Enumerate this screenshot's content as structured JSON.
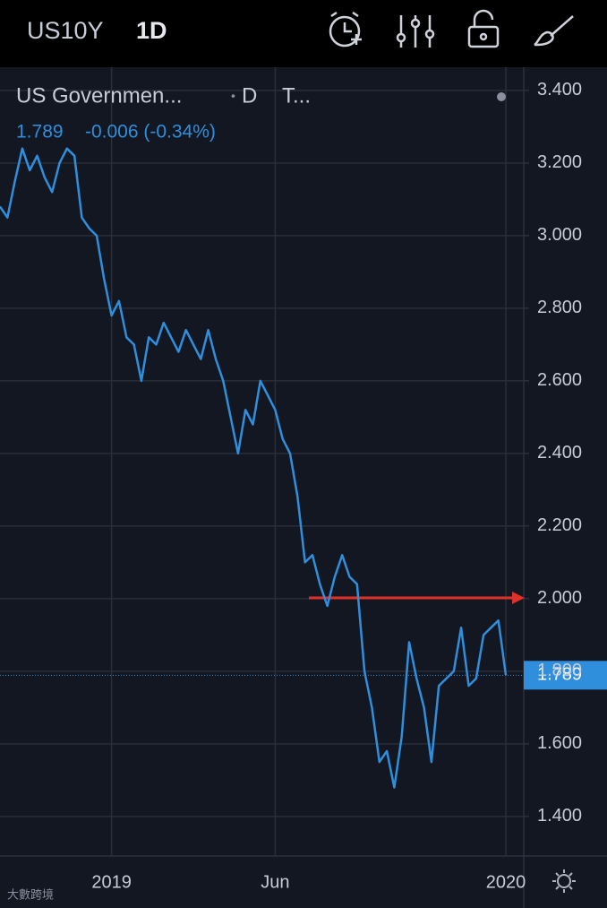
{
  "header": {
    "symbol": "US10Y",
    "interval": "1D"
  },
  "chart_data": {
    "type": "line",
    "legend": {
      "name": "US Governmen...",
      "resolution": "D",
      "source": "T...",
      "change": "-0.006 (-0.34%)"
    },
    "categories": [
      null,
      null,
      null,
      null,
      null,
      null,
      null,
      null,
      null,
      null,
      null,
      null,
      null,
      null,
      null,
      "2019",
      null,
      null,
      null,
      null,
      null,
      null,
      null,
      null,
      null,
      null,
      null,
      null,
      null,
      null,
      null,
      null,
      null,
      null,
      null,
      null,
      null,
      "Jun",
      null,
      null,
      null,
      null,
      null,
      null,
      null,
      null,
      null,
      null,
      null,
      null,
      null,
      null,
      null,
      null,
      null,
      null,
      null,
      null,
      null,
      null,
      null,
      null,
      null,
      null,
      null,
      null,
      null,
      null,
      "2020"
    ],
    "series": [
      {
        "name": "US10Y",
        "color": "#2f8fdc",
        "values": [
          3.08,
          3.05,
          3.15,
          3.24,
          3.18,
          3.22,
          3.16,
          3.12,
          3.2,
          3.24,
          3.22,
          3.05,
          3.02,
          3.0,
          2.88,
          2.78,
          2.82,
          2.72,
          2.7,
          2.6,
          2.72,
          2.7,
          2.76,
          2.72,
          2.68,
          2.74,
          2.7,
          2.66,
          2.74,
          2.66,
          2.6,
          2.5,
          2.4,
          2.52,
          2.48,
          2.6,
          2.56,
          2.52,
          2.44,
          2.4,
          2.28,
          2.1,
          2.12,
          2.04,
          1.98,
          2.06,
          2.12,
          2.06,
          2.04,
          1.8,
          1.7,
          1.55,
          1.58,
          1.48,
          1.62,
          1.88,
          1.78,
          1.7,
          1.55,
          1.76,
          1.78,
          1.8,
          1.92,
          1.76,
          1.78,
          1.9,
          1.92,
          1.94,
          1.789
        ]
      }
    ],
    "ylim": [
      1.291,
      3.464
    ],
    "yticks": [
      {
        "value": 1.4,
        "label": "1.400"
      },
      {
        "value": 1.6,
        "label": "1.600"
      },
      {
        "value": 1.8,
        "label": "1.800"
      },
      {
        "value": 2.0,
        "label": "2.000"
      },
      {
        "value": 2.2,
        "label": "2.200"
      },
      {
        "value": 2.4,
        "label": "2.400"
      },
      {
        "value": 2.6,
        "label": "2.600"
      },
      {
        "value": 2.8,
        "label": "2.800"
      },
      {
        "value": 3.0,
        "label": "3.000"
      },
      {
        "value": 3.2,
        "label": "3.200"
      },
      {
        "value": 3.4,
        "label": "3.400"
      }
    ],
    "grid": true
  },
  "watermark": "大數跨境"
}
